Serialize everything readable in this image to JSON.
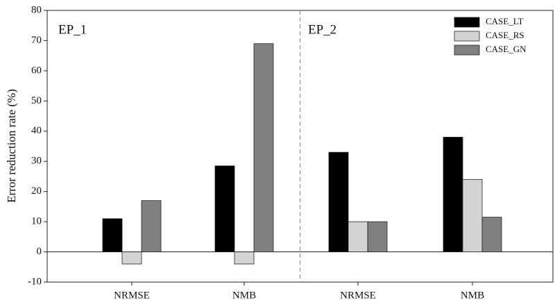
{
  "chart_data": {
    "type": "bar",
    "y_label": "Error reduction rate (%)",
    "panels": [
      "EP_1",
      "EP_2"
    ],
    "categories": [
      "NRMSE",
      "NMB",
      "NRMSE",
      "NMB"
    ],
    "series": [
      {
        "name": "CASE_LT",
        "color": "#000000",
        "values": [
          11,
          28.5,
          33,
          38
        ]
      },
      {
        "name": "CASE_RS",
        "color": "#d4d4d4",
        "values": [
          -4,
          -4,
          10,
          24
        ]
      },
      {
        "name": "CASE_GN",
        "color": "#808080",
        "values": [
          17,
          69,
          10,
          11.5
        ]
      }
    ],
    "ylim": [
      -10,
      80
    ],
    "yticks": [
      -10,
      0,
      10,
      20,
      30,
      40,
      50,
      60,
      70,
      80
    ],
    "legend": "upper right"
  }
}
